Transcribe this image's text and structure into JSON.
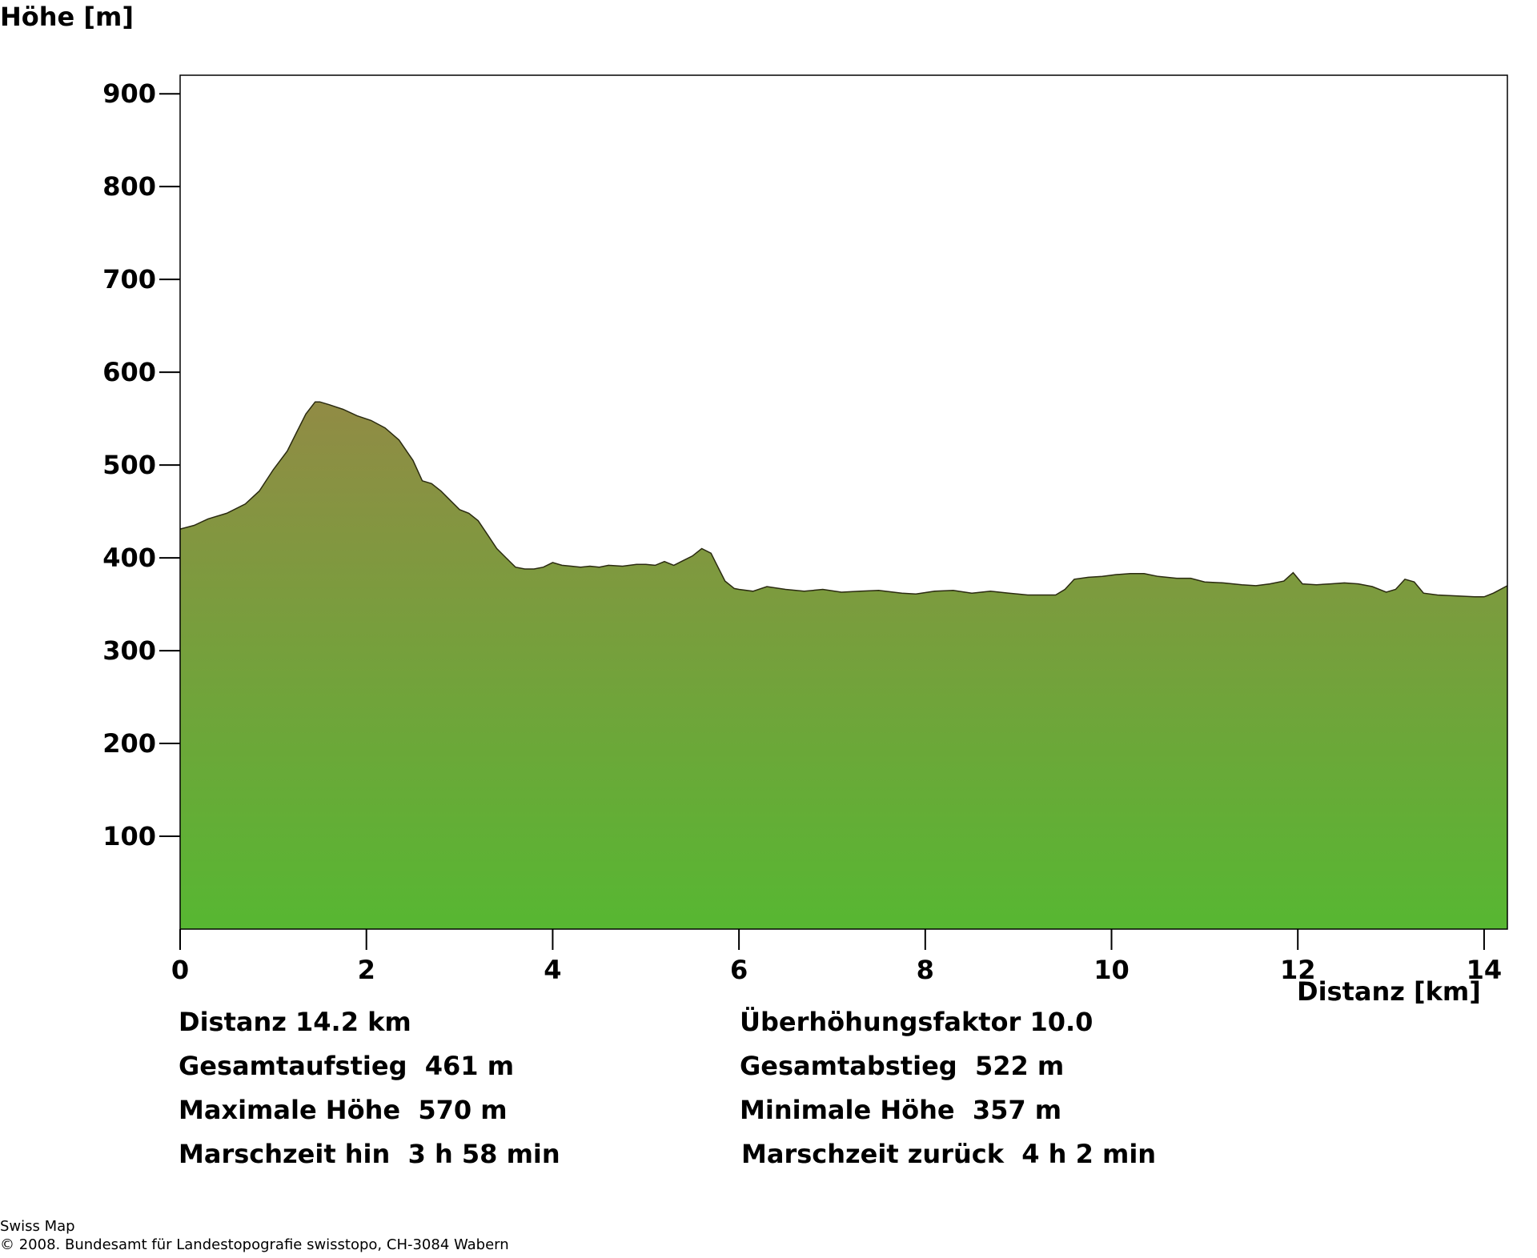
{
  "chart_data": {
    "type": "area",
    "ylabel": "Höhe [m]",
    "xlabel": "Distanz [km]",
    "xlim": [
      0,
      14.25
    ],
    "ylim": [
      0,
      920
    ],
    "xticks": [
      0,
      2,
      4,
      6,
      8,
      10,
      12,
      14
    ],
    "yticks": [
      100,
      200,
      300,
      400,
      500,
      600,
      700,
      800,
      900
    ],
    "grid": false,
    "fill_top_color": "#918b45",
    "fill_bottom_color": "#57b732",
    "outline_color": "#2a2a10",
    "x": [
      0,
      0.15,
      0.3,
      0.5,
      0.7,
      0.85,
      1.0,
      1.15,
      1.25,
      1.35,
      1.45,
      1.5,
      1.6,
      1.75,
      1.9,
      2.05,
      2.2,
      2.35,
      2.5,
      2.6,
      2.7,
      2.8,
      2.9,
      3.0,
      3.1,
      3.2,
      3.3,
      3.4,
      3.5,
      3.6,
      3.7,
      3.8,
      3.9,
      4.0,
      4.1,
      4.2,
      4.3,
      4.4,
      4.5,
      4.6,
      4.75,
      4.9,
      5.0,
      5.1,
      5.2,
      5.3,
      5.4,
      5.5,
      5.6,
      5.7,
      5.75,
      5.85,
      5.95,
      6.0,
      6.15,
      6.3,
      6.5,
      6.7,
      6.9,
      7.1,
      7.3,
      7.5,
      7.75,
      7.9,
      8.1,
      8.3,
      8.5,
      8.7,
      8.9,
      9.1,
      9.3,
      9.4,
      9.5,
      9.6,
      9.75,
      9.9,
      10.05,
      10.2,
      10.35,
      10.5,
      10.7,
      10.85,
      11.0,
      11.2,
      11.4,
      11.55,
      11.7,
      11.85,
      11.95,
      12.05,
      12.2,
      12.35,
      12.5,
      12.65,
      12.8,
      12.95,
      13.05,
      13.15,
      13.25,
      13.35,
      13.5,
      13.7,
      13.9,
      14.0,
      14.1,
      14.25
    ],
    "y": [
      431,
      435,
      442,
      448,
      458,
      472,
      495,
      515,
      535,
      555,
      568,
      568,
      565,
      560,
      553,
      548,
      540,
      527,
      505,
      483,
      480,
      472,
      462,
      452,
      448,
      440,
      425,
      410,
      400,
      390,
      388,
      388,
      390,
      395,
      392,
      391,
      390,
      391,
      390,
      392,
      391,
      393,
      393,
      392,
      396,
      392,
      397,
      402,
      410,
      405,
      395,
      375,
      367,
      366,
      364,
      369,
      366,
      364,
      366,
      363,
      364,
      365,
      362,
      361,
      364,
      365,
      362,
      364,
      362,
      360,
      360,
      360,
      366,
      377,
      379,
      380,
      382,
      383,
      383,
      380,
      378,
      378,
      374,
      373,
      371,
      370,
      372,
      375,
      384,
      372,
      371,
      372,
      373,
      372,
      369,
      363,
      366,
      377,
      374,
      362,
      360,
      359,
      358,
      358,
      362,
      370
    ]
  },
  "stats": {
    "left": [
      "Distanz 14.2 km",
      "Gesamtaufstieg  461 m",
      "Maximale Höhe  570 m",
      "Marschzeit hin  3 h 58 min"
    ],
    "right": [
      "Überhöhungsfaktor 10.0",
      "Gesamtabstieg  522 m",
      "Minimale Höhe  357 m",
      "Marschzeit zurück  4 h 2 min"
    ]
  },
  "footer": {
    "line1": "Swiss Map",
    "line2": "© 2008. Bundesamt für Landestopografie swisstopo, CH-3084 Wabern"
  }
}
